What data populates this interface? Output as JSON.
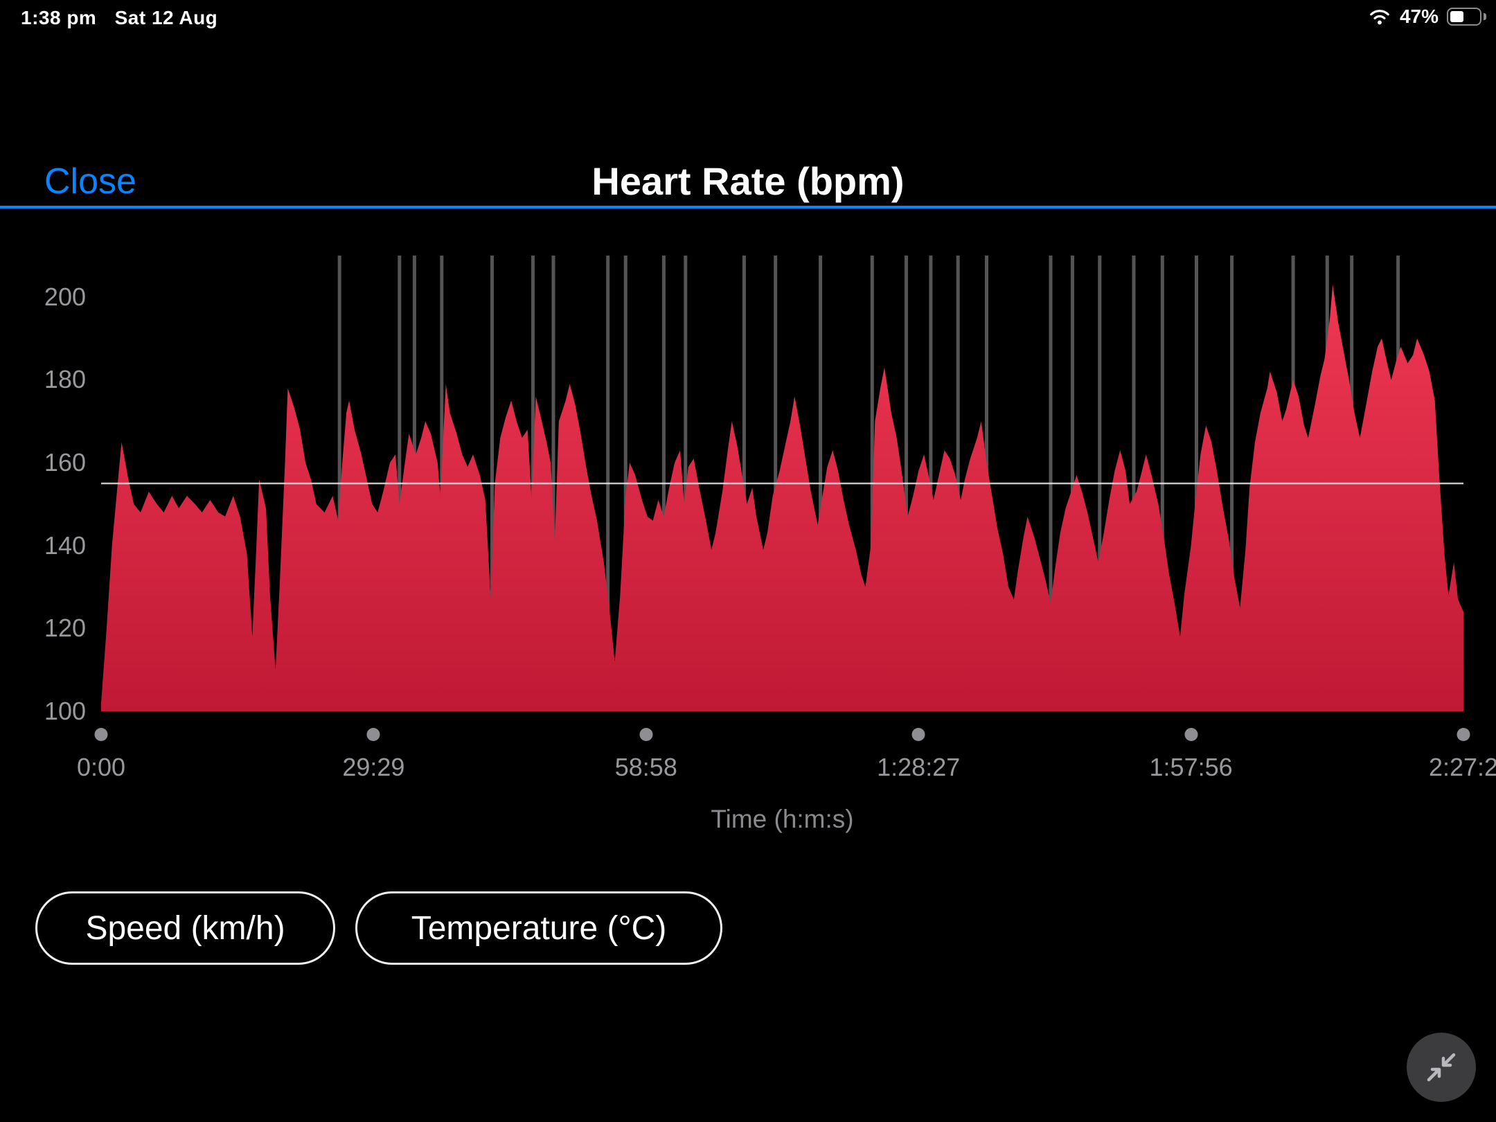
{
  "status_bar": {
    "time": "1:38 pm",
    "date": "Sat 12 Aug",
    "battery_percent": "47%"
  },
  "header": {
    "close_label": "Close",
    "title": "Heart Rate (bpm)",
    "accent_color": "#0a84ff"
  },
  "chart_data": {
    "type": "area",
    "title": "Heart Rate (bpm)",
    "xlabel": "Time (h:m:s)",
    "ylim": [
      100,
      210
    ],
    "yticks": [
      200,
      180,
      160,
      140,
      120,
      100
    ],
    "xticks": [
      {
        "t": 0.0,
        "label": "0:00"
      },
      {
        "t": 0.2,
        "label": "29:29"
      },
      {
        "t": 0.4,
        "label": "58:58"
      },
      {
        "t": 0.6,
        "label": "1:28:27"
      },
      {
        "t": 0.8,
        "label": "1:57:56"
      },
      {
        "t": 1.0,
        "label": "2:27:2"
      }
    ],
    "average_bpm": 155,
    "grid": false,
    "legend": false,
    "colors": {
      "fill_top": "#ef3853",
      "fill_bottom": "#c01935",
      "average_line": "#e8e8e8",
      "marker": "#545456",
      "axis_text": "#98989d"
    },
    "pause_marker_positions": [
      0.175,
      0.219,
      0.23,
      0.25,
      0.287,
      0.317,
      0.332,
      0.372,
      0.385,
      0.413,
      0.429,
      0.472,
      0.495,
      0.528,
      0.566,
      0.591,
      0.609,
      0.629,
      0.65,
      0.697,
      0.713,
      0.733,
      0.758,
      0.779,
      0.804,
      0.83,
      0.875,
      0.9,
      0.918,
      0.952
    ],
    "points": [
      [
        0.0,
        102
      ],
      [
        0.004,
        120
      ],
      [
        0.008,
        140
      ],
      [
        0.013,
        158
      ],
      [
        0.015,
        165
      ],
      [
        0.02,
        156
      ],
      [
        0.024,
        150
      ],
      [
        0.029,
        148
      ],
      [
        0.035,
        153
      ],
      [
        0.041,
        150
      ],
      [
        0.046,
        148
      ],
      [
        0.052,
        152
      ],
      [
        0.057,
        149
      ],
      [
        0.063,
        152
      ],
      [
        0.069,
        150
      ],
      [
        0.074,
        148
      ],
      [
        0.08,
        151
      ],
      [
        0.086,
        148
      ],
      [
        0.091,
        147
      ],
      [
        0.097,
        152
      ],
      [
        0.102,
        147
      ],
      [
        0.107,
        138
      ],
      [
        0.111,
        118
      ],
      [
        0.114,
        140
      ],
      [
        0.116,
        156
      ],
      [
        0.121,
        149
      ],
      [
        0.124,
        128
      ],
      [
        0.128,
        110
      ],
      [
        0.131,
        130
      ],
      [
        0.135,
        160
      ],
      [
        0.137,
        178
      ],
      [
        0.142,
        173
      ],
      [
        0.146,
        168
      ],
      [
        0.15,
        160
      ],
      [
        0.154,
        156
      ],
      [
        0.158,
        150
      ],
      [
        0.164,
        148
      ],
      [
        0.17,
        152
      ],
      [
        0.174,
        146
      ],
      [
        0.177,
        160
      ],
      [
        0.18,
        172
      ],
      [
        0.182,
        175
      ],
      [
        0.186,
        168
      ],
      [
        0.191,
        162
      ],
      [
        0.195,
        156
      ],
      [
        0.199,
        150
      ],
      [
        0.203,
        148
      ],
      [
        0.207,
        153
      ],
      [
        0.212,
        160
      ],
      [
        0.216,
        162
      ],
      [
        0.219,
        150
      ],
      [
        0.223,
        160
      ],
      [
        0.226,
        167
      ],
      [
        0.231,
        162
      ],
      [
        0.235,
        166
      ],
      [
        0.238,
        170
      ],
      [
        0.242,
        167
      ],
      [
        0.247,
        160
      ],
      [
        0.249,
        152
      ],
      [
        0.253,
        179
      ],
      [
        0.256,
        172
      ],
      [
        0.261,
        167
      ],
      [
        0.265,
        162
      ],
      [
        0.269,
        159
      ],
      [
        0.273,
        162
      ],
      [
        0.278,
        157
      ],
      [
        0.282,
        151
      ],
      [
        0.286,
        127
      ],
      [
        0.289,
        155
      ],
      [
        0.293,
        166
      ],
      [
        0.297,
        171
      ],
      [
        0.301,
        175
      ],
      [
        0.305,
        170
      ],
      [
        0.309,
        166
      ],
      [
        0.313,
        168
      ],
      [
        0.316,
        151
      ],
      [
        0.319,
        176
      ],
      [
        0.322,
        172
      ],
      [
        0.327,
        165
      ],
      [
        0.33,
        160
      ],
      [
        0.333,
        141
      ],
      [
        0.336,
        170
      ],
      [
        0.341,
        175
      ],
      [
        0.344,
        179
      ],
      [
        0.348,
        174
      ],
      [
        0.352,
        167
      ],
      [
        0.356,
        159
      ],
      [
        0.36,
        152
      ],
      [
        0.364,
        146
      ],
      [
        0.369,
        136
      ],
      [
        0.373,
        125
      ],
      [
        0.377,
        112
      ],
      [
        0.381,
        128
      ],
      [
        0.385,
        152
      ],
      [
        0.388,
        160
      ],
      [
        0.392,
        157
      ],
      [
        0.397,
        151
      ],
      [
        0.401,
        147
      ],
      [
        0.405,
        146
      ],
      [
        0.409,
        151
      ],
      [
        0.413,
        147
      ],
      [
        0.417,
        154
      ],
      [
        0.421,
        160
      ],
      [
        0.425,
        163
      ],
      [
        0.428,
        150
      ],
      [
        0.431,
        159
      ],
      [
        0.435,
        161
      ],
      [
        0.439,
        154
      ],
      [
        0.444,
        146
      ],
      [
        0.448,
        139
      ],
      [
        0.451,
        143
      ],
      [
        0.456,
        153
      ],
      [
        0.46,
        163
      ],
      [
        0.463,
        170
      ],
      [
        0.467,
        164
      ],
      [
        0.471,
        156
      ],
      [
        0.474,
        150
      ],
      [
        0.478,
        154
      ],
      [
        0.481,
        147
      ],
      [
        0.486,
        139
      ],
      [
        0.489,
        143
      ],
      [
        0.493,
        152
      ],
      [
        0.498,
        158
      ],
      [
        0.502,
        164
      ],
      [
        0.506,
        170
      ],
      [
        0.509,
        176
      ],
      [
        0.513,
        169
      ],
      [
        0.517,
        161
      ],
      [
        0.521,
        153
      ],
      [
        0.526,
        145
      ],
      [
        0.529,
        151
      ],
      [
        0.533,
        159
      ],
      [
        0.537,
        163
      ],
      [
        0.541,
        158
      ],
      [
        0.545,
        151
      ],
      [
        0.549,
        145
      ],
      [
        0.554,
        139
      ],
      [
        0.558,
        133
      ],
      [
        0.561,
        130
      ],
      [
        0.565,
        140
      ],
      [
        0.568,
        170
      ],
      [
        0.572,
        178
      ],
      [
        0.575,
        183
      ],
      [
        0.58,
        172
      ],
      [
        0.584,
        166
      ],
      [
        0.588,
        157
      ],
      [
        0.592,
        147
      ],
      [
        0.596,
        152
      ],
      [
        0.6,
        158
      ],
      [
        0.604,
        162
      ],
      [
        0.608,
        156
      ],
      [
        0.611,
        151
      ],
      [
        0.615,
        157
      ],
      [
        0.619,
        163
      ],
      [
        0.623,
        161
      ],
      [
        0.627,
        157
      ],
      [
        0.631,
        151
      ],
      [
        0.634,
        156
      ],
      [
        0.638,
        161
      ],
      [
        0.643,
        166
      ],
      [
        0.646,
        170
      ],
      [
        0.65,
        160
      ],
      [
        0.654,
        152
      ],
      [
        0.658,
        144
      ],
      [
        0.662,
        138
      ],
      [
        0.666,
        130
      ],
      [
        0.67,
        127
      ],
      [
        0.673,
        134
      ],
      [
        0.677,
        142
      ],
      [
        0.68,
        147
      ],
      [
        0.685,
        142
      ],
      [
        0.689,
        137
      ],
      [
        0.693,
        132
      ],
      [
        0.697,
        126
      ],
      [
        0.7,
        134
      ],
      [
        0.704,
        143
      ],
      [
        0.708,
        149
      ],
      [
        0.712,
        153
      ],
      [
        0.716,
        157
      ],
      [
        0.72,
        153
      ],
      [
        0.724,
        148
      ],
      [
        0.728,
        142
      ],
      [
        0.732,
        136
      ],
      [
        0.736,
        143
      ],
      [
        0.74,
        151
      ],
      [
        0.744,
        158
      ],
      [
        0.748,
        163
      ],
      [
        0.752,
        158
      ],
      [
        0.755,
        150
      ],
      [
        0.76,
        153
      ],
      [
        0.764,
        158
      ],
      [
        0.767,
        162
      ],
      [
        0.771,
        157
      ],
      [
        0.776,
        150
      ],
      [
        0.78,
        142
      ],
      [
        0.784,
        133
      ],
      [
        0.788,
        126
      ],
      [
        0.792,
        118
      ],
      [
        0.795,
        128
      ],
      [
        0.8,
        140
      ],
      [
        0.803,
        150
      ],
      [
        0.807,
        162
      ],
      [
        0.811,
        169
      ],
      [
        0.815,
        165
      ],
      [
        0.819,
        158
      ],
      [
        0.823,
        150
      ],
      [
        0.828,
        141
      ],
      [
        0.832,
        132
      ],
      [
        0.836,
        125
      ],
      [
        0.84,
        139
      ],
      [
        0.843,
        154
      ],
      [
        0.847,
        165
      ],
      [
        0.851,
        172
      ],
      [
        0.856,
        178
      ],
      [
        0.858,
        182
      ],
      [
        0.863,
        177
      ],
      [
        0.867,
        170
      ],
      [
        0.87,
        173
      ],
      [
        0.875,
        180
      ],
      [
        0.879,
        176
      ],
      [
        0.883,
        169
      ],
      [
        0.886,
        166
      ],
      [
        0.891,
        174
      ],
      [
        0.895,
        181
      ],
      [
        0.898,
        185
      ],
      [
        0.902,
        195
      ],
      [
        0.904,
        203
      ],
      [
        0.908,
        194
      ],
      [
        0.912,
        187
      ],
      [
        0.916,
        180
      ],
      [
        0.92,
        172
      ],
      [
        0.924,
        166
      ],
      [
        0.928,
        173
      ],
      [
        0.933,
        182
      ],
      [
        0.937,
        188
      ],
      [
        0.94,
        190
      ],
      [
        0.944,
        184
      ],
      [
        0.947,
        180
      ],
      [
        0.951,
        185
      ],
      [
        0.954,
        188
      ],
      [
        0.959,
        184
      ],
      [
        0.963,
        186
      ],
      [
        0.966,
        190
      ],
      [
        0.971,
        186
      ],
      [
        0.975,
        182
      ],
      [
        0.979,
        175
      ],
      [
        0.982,
        158
      ],
      [
        0.986,
        138
      ],
      [
        0.989,
        128
      ],
      [
        0.993,
        136
      ],
      [
        0.996,
        127
      ],
      [
        1.0,
        124
      ]
    ]
  },
  "toggles": [
    {
      "label": "Speed (km/h)"
    },
    {
      "label": "Temperature (°C)"
    }
  ]
}
